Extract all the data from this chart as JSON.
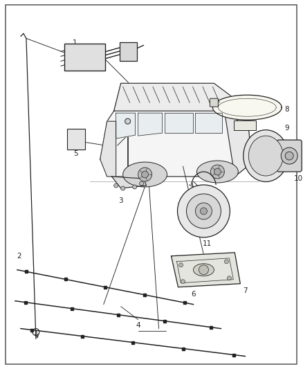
{
  "bg": "#ffffff",
  "border_color": "#555555",
  "lc": "#222222",
  "fig_w": 4.38,
  "fig_h": 5.33,
  "dpi": 100,
  "fs": 7.5
}
